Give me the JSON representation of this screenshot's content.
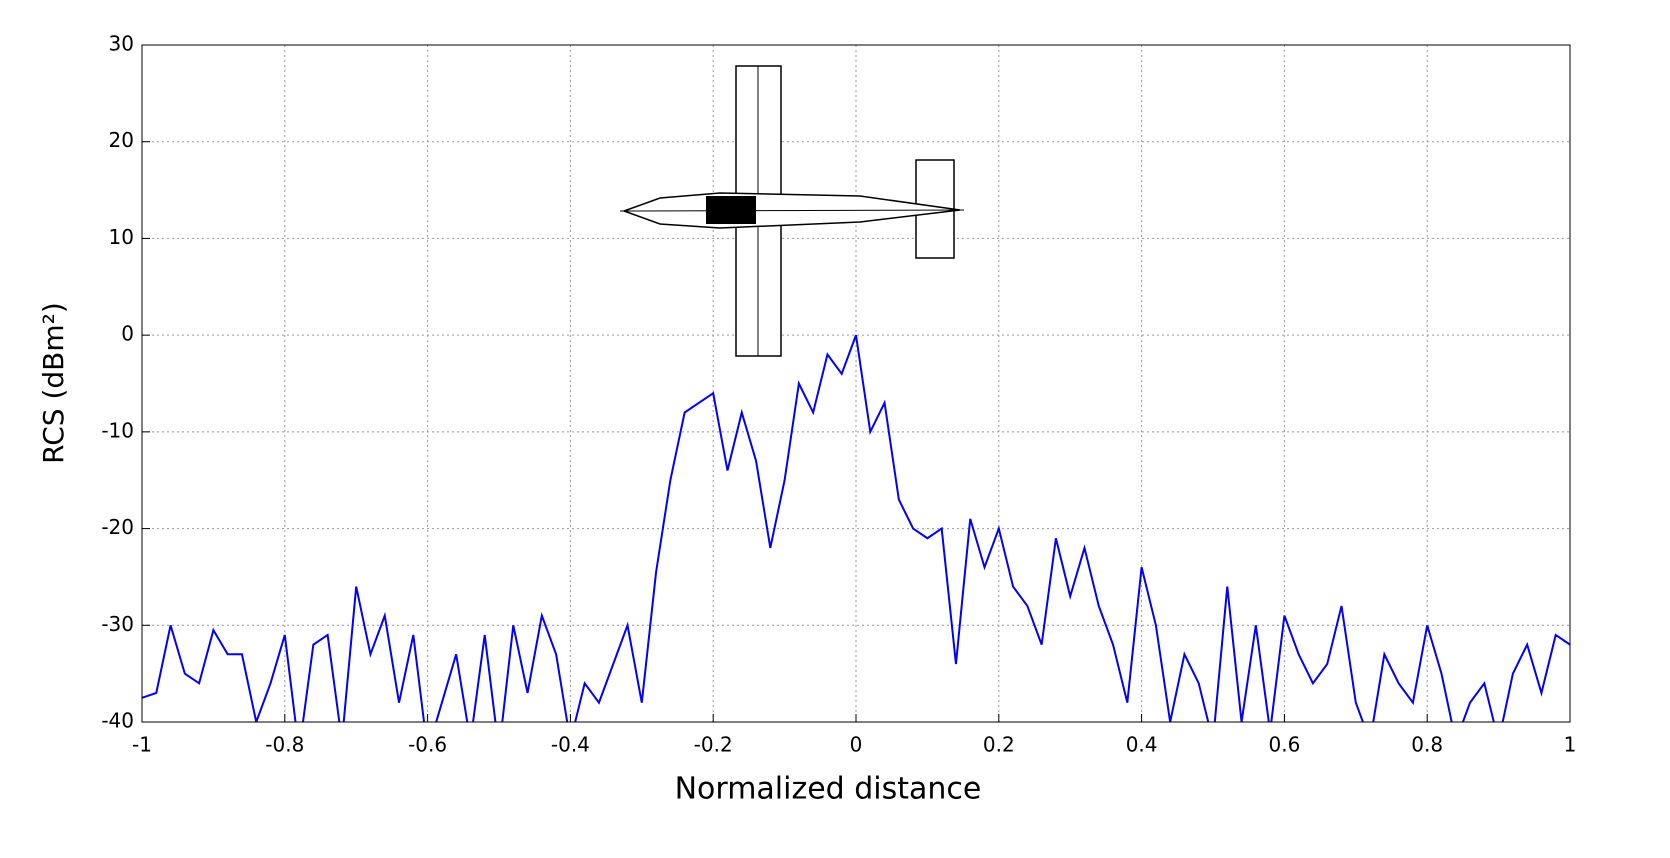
{
  "chart_data": {
    "type": "line",
    "xlabel": "Normalized distance",
    "ylabel": "RCS (dBm²)",
    "x": [
      -1,
      -0.98,
      -0.96,
      -0.94,
      -0.92,
      -0.9,
      -0.88,
      -0.86,
      -0.84,
      -0.82,
      -0.8,
      -0.78,
      -0.76,
      -0.74,
      -0.72,
      -0.7,
      -0.68,
      -0.66,
      -0.64,
      -0.62,
      -0.6,
      -0.58,
      -0.56,
      -0.54,
      -0.52,
      -0.5,
      -0.48,
      -0.46,
      -0.44,
      -0.42,
      -0.4,
      -0.38,
      -0.36,
      -0.34,
      -0.32,
      -0.3,
      -0.28,
      -0.26,
      -0.24,
      -0.22,
      -0.2,
      -0.18,
      -0.16,
      -0.14,
      -0.12,
      -0.1,
      -0.08,
      -0.06,
      -0.04,
      -0.02,
      0,
      0.02,
      0.04,
      0.06,
      0.08,
      0.1,
      0.12,
      0.14,
      0.16,
      0.18,
      0.2,
      0.22,
      0.24,
      0.26,
      0.28,
      0.3,
      0.32,
      0.34,
      0.36,
      0.38,
      0.4,
      0.42,
      0.44,
      0.46,
      0.48,
      0.5,
      0.52,
      0.54,
      0.56,
      0.58,
      0.6,
      0.62,
      0.64,
      0.66,
      0.68,
      0.7,
      0.72,
      0.74,
      0.76,
      0.78,
      0.8,
      0.82,
      0.84,
      0.86,
      0.88,
      0.9,
      0.92,
      0.94,
      0.96,
      0.98,
      1
    ],
    "series": [
      {
        "name": "RCS",
        "color": "#0000ff",
        "values": [
          -37.5,
          -37,
          -30,
          -35,
          -36,
          -30.5,
          -33,
          -33,
          -40,
          -36,
          -31,
          -43,
          -32,
          -31,
          -42,
          -26,
          -33,
          -29,
          -38,
          -31,
          -43,
          -38,
          -33,
          -42,
          -31,
          -43,
          -30,
          -37,
          -29,
          -33,
          -42,
          -36,
          -38,
          -34,
          -30,
          -38,
          -24.5,
          -15,
          -8,
          -7,
          -6,
          -14,
          -8,
          -13,
          -22,
          -15,
          -5,
          -8,
          -2,
          -4,
          0,
          -10,
          -7,
          -17,
          -20,
          -21,
          -20,
          -34,
          -19,
          -24,
          -20,
          -26,
          -28,
          -32,
          -21,
          -27,
          -22,
          -28,
          -32,
          -38,
          -24,
          -30,
          -40,
          -33,
          -36,
          -42,
          -26,
          -40,
          -30,
          -41,
          -29,
          -33,
          -36,
          -34,
          -28,
          -38,
          -42,
          -33,
          -36,
          -38,
          -30,
          -35,
          -42,
          -38,
          -36,
          -42,
          -35,
          -32,
          -37,
          -31,
          -32
        ]
      }
    ],
    "xlim": [
      -1,
      1
    ],
    "xticks": [
      -1,
      -0.8,
      -0.6,
      -0.4,
      -0.2,
      0,
      0.2,
      0.4,
      0.6,
      0.8,
      1
    ],
    "ylim": [
      -40,
      30
    ],
    "yticks": [
      -40,
      -30,
      -20,
      -10,
      0,
      10,
      20,
      30
    ],
    "grid": true
  }
}
